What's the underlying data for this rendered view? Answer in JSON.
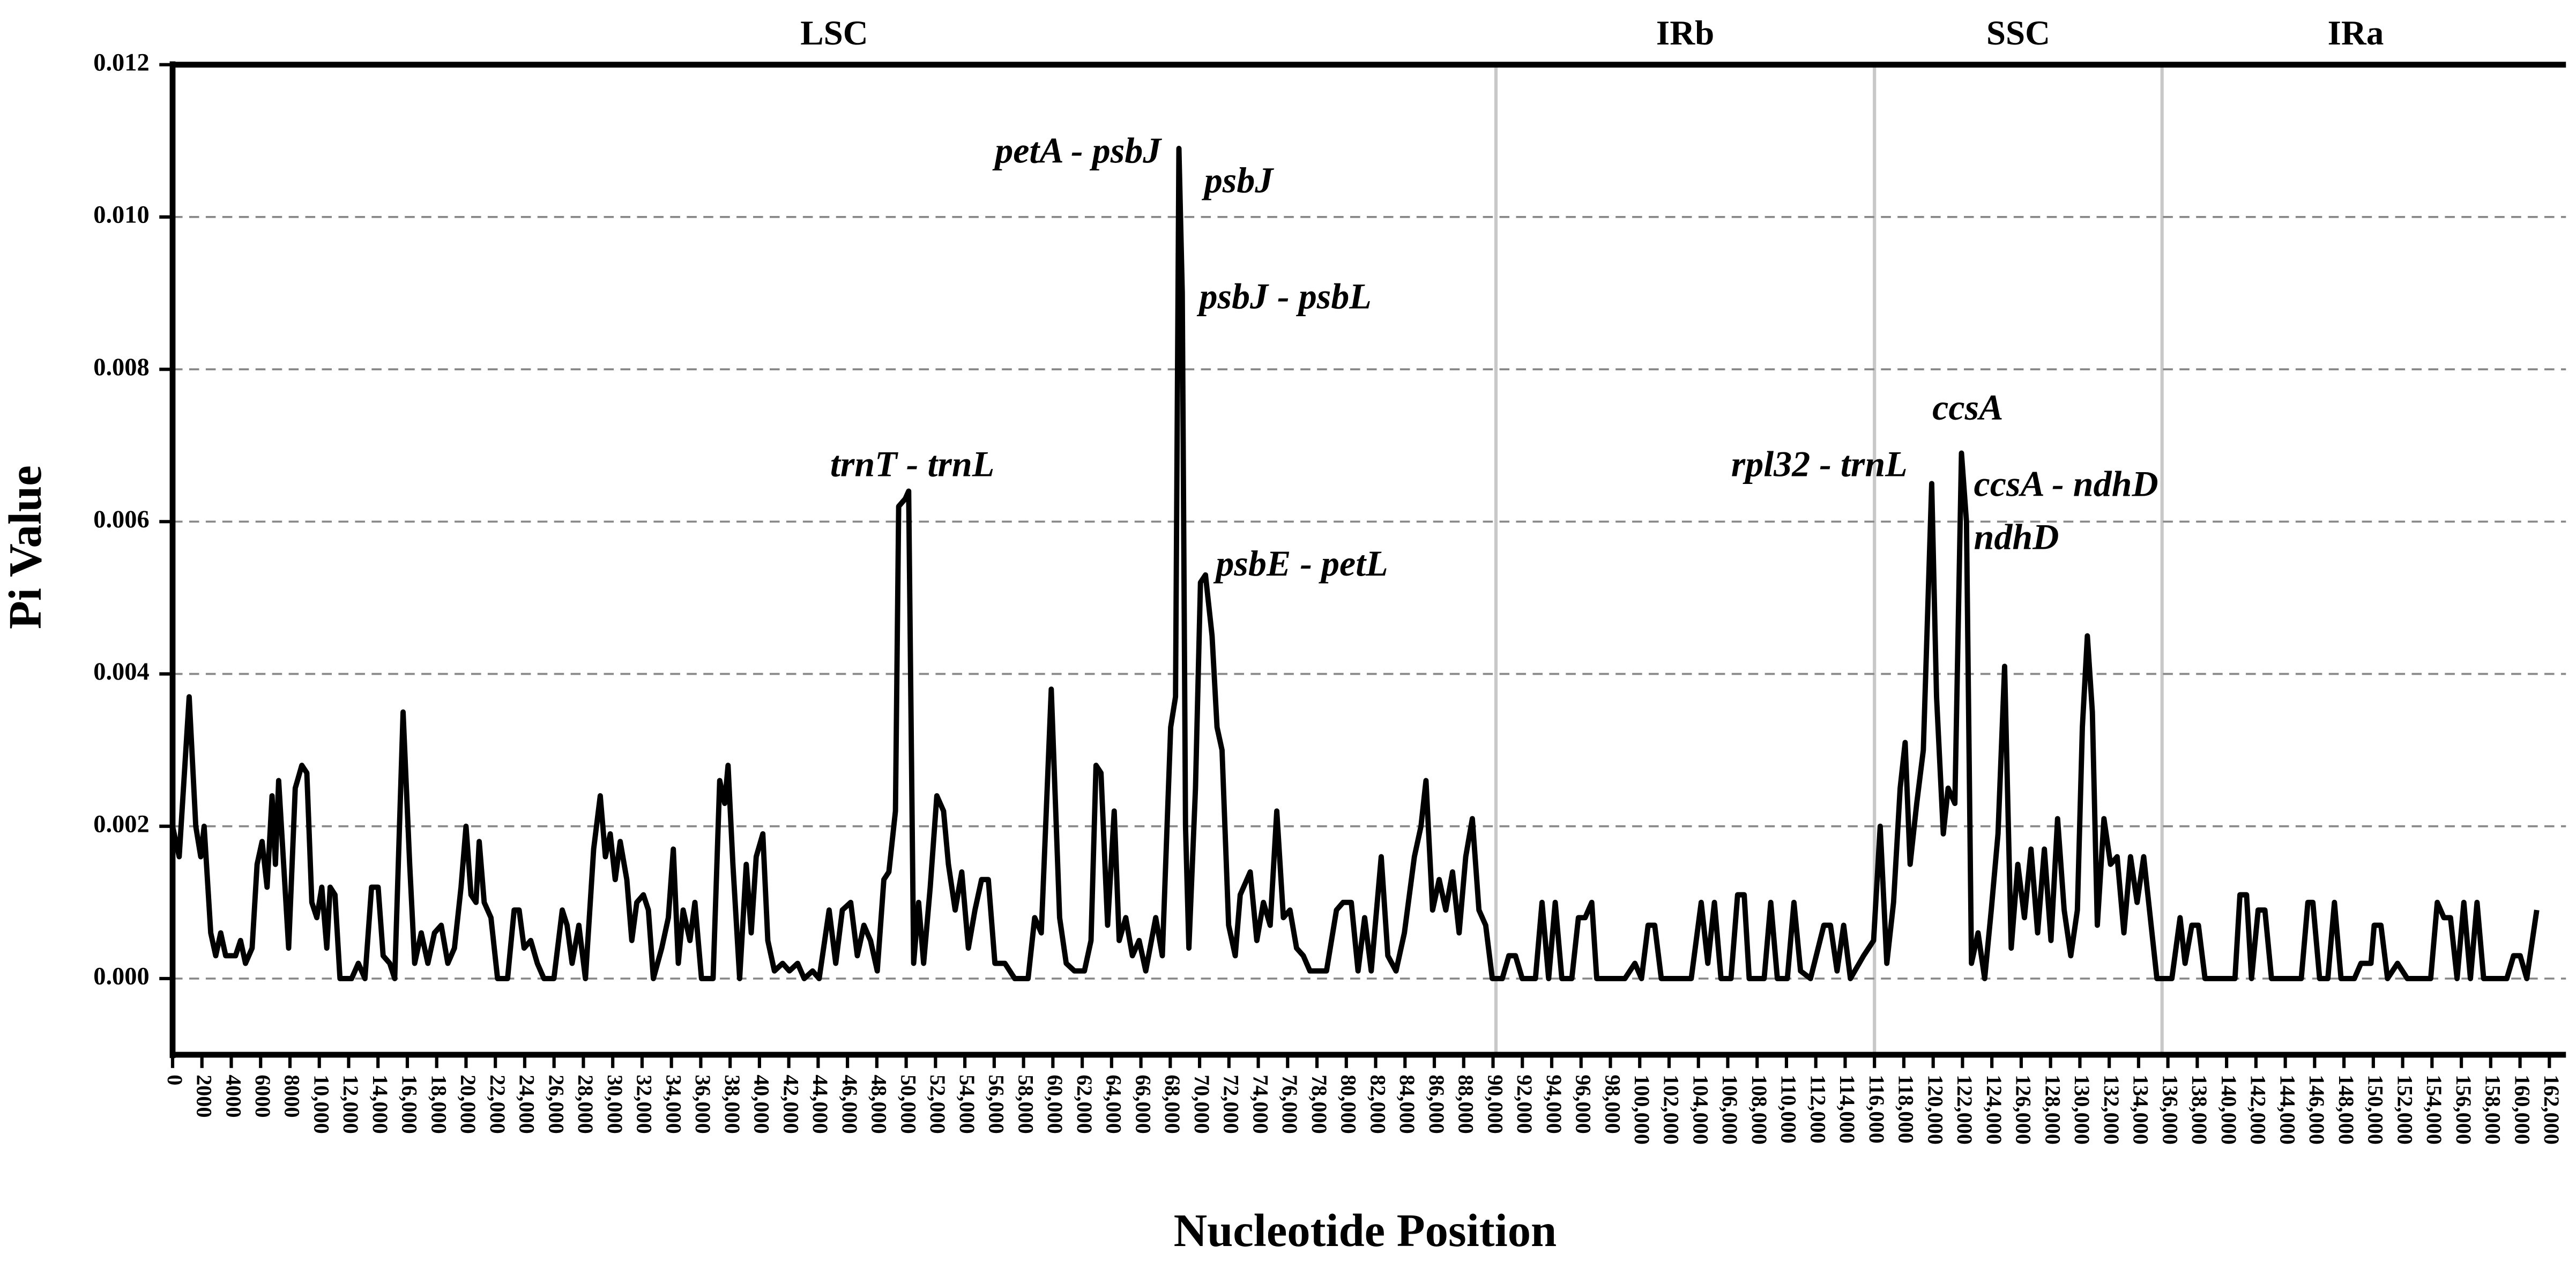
{
  "chart_data": {
    "type": "line",
    "x_label": "Nucleotide Position",
    "y_label": "Pi Value",
    "color": "#000000",
    "grid": true,
    "region_labels": [
      "LSC",
      "IRb",
      "SSC",
      "IRa"
    ],
    "region_boundaries": [
      90200,
      116000,
      135600
    ],
    "annotations": [
      "petA - psbJ",
      "psbJ",
      "psbJ - psbL",
      "trnT - trnL",
      "psbE - petL",
      "rpl32 - trnL",
      "ccsA",
      "ccsA - ndhD",
      "ndhD"
    ],
    "xlim": [
      0,
      162000
    ],
    "ylim": [
      -0.001,
      0.012
    ],
    "yticks": [
      {
        "value": 0,
        "label": "0.000"
      },
      {
        "value": 0.002,
        "label": "0.002"
      },
      {
        "value": 0.004,
        "label": "0.004"
      },
      {
        "value": 0.006,
        "label": "0.006"
      },
      {
        "value": 0.008,
        "label": "0.008"
      },
      {
        "value": 0.01,
        "label": "0.010"
      },
      {
        "value": 0.012,
        "label": "0.012"
      }
    ],
    "xticks": [
      0,
      2000,
      4000,
      6000,
      8000,
      {
        "value": 10000,
        "label": "10,000"
      },
      {
        "value": 12000,
        "label": "12,000"
      },
      {
        "value": 14000,
        "label": "14,000"
      },
      {
        "value": 16000,
        "label": "16,000"
      },
      {
        "value": 18000,
        "label": "18,000"
      },
      {
        "value": 20000,
        "label": "20,000"
      },
      {
        "value": 22000,
        "label": "22,000"
      },
      {
        "value": 24000,
        "label": "24,000"
      },
      {
        "value": 26000,
        "label": "26,000"
      },
      {
        "value": 28000,
        "label": "28,000"
      },
      {
        "value": 30000,
        "label": "30,000"
      },
      {
        "value": 32000,
        "label": "32,000"
      },
      {
        "value": 34000,
        "label": "34,000"
      },
      {
        "value": 36000,
        "label": "36,000"
      },
      {
        "value": 38000,
        "label": "38,000"
      },
      {
        "value": 40000,
        "label": "40,000"
      },
      {
        "value": 42000,
        "label": "42,000"
      },
      {
        "value": 44000,
        "label": "44,000"
      },
      {
        "value": 46000,
        "label": "46,000"
      },
      {
        "value": 48000,
        "label": "48,000"
      },
      {
        "value": 50000,
        "label": "50,000"
      },
      {
        "value": 52000,
        "label": "52,000"
      },
      {
        "value": 54000,
        "label": "54,000"
      },
      {
        "value": 56000,
        "label": "56,000"
      },
      {
        "value": 58000,
        "label": "58,000"
      },
      {
        "value": 60000,
        "label": "60,000"
      },
      {
        "value": 62000,
        "label": "62,000"
      },
      {
        "value": 64000,
        "label": "64,000"
      },
      {
        "value": 66000,
        "label": "66,000"
      },
      {
        "value": 68000,
        "label": "68,000"
      },
      {
        "value": 70000,
        "label": "70,000"
      },
      {
        "value": 72000,
        "label": "72,000"
      },
      {
        "value": 74000,
        "label": "74,000"
      },
      {
        "value": 76000,
        "label": "76,000"
      },
      {
        "value": 78000,
        "label": "78,000"
      },
      {
        "value": 80000,
        "label": "80,000"
      },
      {
        "value": 82000,
        "label": "82,000"
      },
      {
        "value": 84000,
        "label": "84,000"
      },
      {
        "value": 86000,
        "label": "86,000"
      },
      {
        "value": 88000,
        "label": "88,000"
      },
      {
        "value": 90000,
        "label": "90,000"
      },
      {
        "value": 92000,
        "label": "92,000"
      },
      {
        "value": 94000,
        "label": "94,000"
      },
      {
        "value": 96000,
        "label": "96,000"
      },
      {
        "value": 98000,
        "label": "98,000"
      },
      {
        "value": 100000,
        "label": "100,000"
      },
      {
        "value": 102000,
        "label": "102,000"
      },
      {
        "value": 104000,
        "label": "104,000"
      },
      {
        "value": 106000,
        "label": "106,000"
      },
      {
        "value": 108000,
        "label": "108,000"
      },
      {
        "value": 110000,
        "label": "110,000"
      },
      {
        "value": 112000,
        "label": "112,000"
      },
      {
        "value": 114000,
        "label": "114,000"
      },
      {
        "value": 116000,
        "label": "116,000"
      },
      {
        "value": 118000,
        "label": "118,000"
      },
      {
        "value": 120000,
        "label": "120,000"
      },
      {
        "value": 122000,
        "label": "122,000"
      },
      {
        "value": 124000,
        "label": "124,000"
      },
      {
        "value": 126000,
        "label": "126,000"
      },
      {
        "value": 128000,
        "label": "128,000"
      },
      {
        "value": 130000,
        "label": "130,000"
      },
      {
        "value": 132000,
        "label": "132,000"
      },
      {
        "value": 134000,
        "label": "134,000"
      },
      {
        "value": 136000,
        "label": "136,000"
      },
      {
        "value": 138000,
        "label": "138,000"
      },
      {
        "value": 140000,
        "label": "140,000"
      },
      {
        "value": 142000,
        "label": "142,000"
      },
      {
        "value": 144000,
        "label": "144,000"
      },
      {
        "value": 146000,
        "label": "146,000"
      },
      {
        "value": 148000,
        "label": "148,000"
      },
      {
        "value": 150000,
        "label": "150,000"
      },
      {
        "value": 152000,
        "label": "152,000"
      },
      {
        "value": 154000,
        "label": "154,000"
      },
      {
        "value": 156000,
        "label": "156,000"
      },
      {
        "value": 158000,
        "label": "158,000"
      },
      {
        "value": 160000,
        "label": "160,000"
      },
      {
        "value": 162000,
        "label": "162,000"
      }
    ],
    "x": [
      0,
      450,
      1130,
      1580,
      1920,
      2150,
      2600,
      2940,
      3280,
      3620,
      4290,
      4630,
      4970,
      5420,
      5760,
      6100,
      6440,
      6780,
      7010,
      7230,
      7570,
      7910,
      8360,
      8810,
      9150,
      9490,
      9830,
      10170,
      10510,
      10740,
      11070,
      11410,
      12200,
      12660,
      13110,
      13560,
      14010,
      14350,
      14800,
      15140,
      15710,
      16160,
      16500,
      16950,
      17400,
      17850,
      18310,
      18760,
      19210,
      19660,
      20000,
      20340,
      20680,
      20900,
      21240,
      21700,
      22150,
      22830,
      23280,
      23620,
      23960,
      24410,
      24860,
      25310,
      25990,
      26560,
      26890,
      27230,
      27690,
      28140,
      28700,
      29150,
      29500,
      29830,
      30170,
      30510,
      30960,
      31300,
      31640,
      32090,
      32430,
      32770,
      33340,
      33790,
      34130,
      34470,
      34800,
      35260,
      35600,
      36050,
      36840,
      37290,
      37630,
      37860,
      38190,
      38650,
      39100,
      39440,
      39780,
      40230,
      40570,
      41020,
      41580,
      42040,
      42600,
      43050,
      43620,
      44070,
      44750,
      45200,
      45650,
      46220,
      46670,
      47120,
      47570,
      48030,
      48480,
      48820,
      49270,
      49490,
      49940,
      50170,
      50510,
      50850,
      51190,
      51640,
      52090,
      52550,
      52880,
      53340,
      53790,
      54240,
      54690,
      55140,
      55600,
      56050,
      56730,
      57400,
      58310,
      58760,
      59210,
      59890,
      60460,
      60910,
      61470,
      62150,
      62600,
      62940,
      63280,
      63730,
      64180,
      64520,
      64970,
      65420,
      65880,
      66330,
      67010,
      67460,
      68030,
      68360,
      68590,
      68820,
      69040,
      69270,
      69720,
      70060,
      70400,
      70850,
      71190,
      71530,
      71980,
      72430,
      72770,
      73450,
      73900,
      74350,
      74810,
      75260,
      75710,
      76160,
      76610,
      77070,
      77520,
      78200,
      78650,
      79330,
      79780,
      80340,
      80800,
      81250,
      81700,
      82380,
      82830,
      83390,
      83960,
      84640,
      85090,
      85430,
      85880,
      86330,
      86780,
      87240,
      87690,
      88140,
      88590,
      89040,
      89500,
      89950,
      90630,
      91080,
      91530,
      91990,
      92890,
      93340,
      93790,
      94240,
      94690,
      95370,
      95820,
      96280,
      96730,
      97070,
      98990,
      99670,
      100120,
      100570,
      101020,
      101470,
      103510,
      104190,
      104640,
      105090,
      105540,
      106220,
      106670,
      107120,
      107460,
      108480,
      108930,
      109380,
      110060,
      110510,
      110960,
      111640,
      112550,
      113000,
      113450,
      113900,
      114360,
      115260,
      115940,
      116390,
      116840,
      117300,
      117750,
      118090,
      118430,
      118880,
      119330,
      119900,
      120230,
      120690,
      121020,
      121480,
      121930,
      122270,
      122610,
      123060,
      123510,
      123960,
      124420,
      124870,
      125320,
      125770,
      126220,
      126670,
      127120,
      127580,
      128030,
      128480,
      128930,
      129380,
      129830,
      130170,
      130510,
      130850,
      131190,
      131640,
      132090,
      132540,
      133000,
      133450,
      133900,
      134350,
      134800,
      135250,
      136270,
      136830,
      137170,
      137630,
      138080,
      138530,
      140570,
      140910,
      141360,
      141700,
      142150,
      142610,
      143060,
      145090,
      145540,
      145880,
      146340,
      146900,
      147350,
      147800,
      148710,
      149160,
      149840,
      150060,
      150520,
      150970,
      151650,
      152320,
      153910,
      154360,
      154810,
      155260,
      155710,
      156170,
      156620,
      157070,
      157520,
      159100,
      159560,
      160010,
      160460,
      161140
    ],
    "values": [
      0.002,
      0.0016,
      0.0037,
      0.002,
      0.0016,
      0.002,
      0.0006,
      0.0003,
      0.0006,
      0.0003,
      0.0003,
      0.0005,
      0.0002,
      0.0004,
      0.0015,
      0.0018,
      0.0012,
      0.0024,
      0.0015,
      0.0026,
      0.0015,
      0.0004,
      0.0025,
      0.0028,
      0.0027,
      0.001,
      0.0008,
      0.0012,
      0.0004,
      0.0012,
      0.0011,
      0,
      0,
      0.0002,
      0,
      0.0012,
      0.0012,
      0.0003,
      0.0002,
      0,
      0.0035,
      0.0015,
      0.0002,
      0.0006,
      0.0002,
      0.0006,
      0.0007,
      0.0002,
      0.0004,
      0.0012,
      0.002,
      0.0011,
      0.001,
      0.0018,
      0.001,
      0.0008,
      0,
      0,
      0.0009,
      0.0009,
      0.0004,
      0.0005,
      0.0002,
      0,
      0,
      0.0009,
      0.0007,
      0.0002,
      0.0007,
      0,
      0.0017,
      0.0024,
      0.0016,
      0.0019,
      0.0013,
      0.0018,
      0.0013,
      0.0005,
      0.001,
      0.0011,
      0.0009,
      0,
      0.0004,
      0.0008,
      0.0017,
      0.0002,
      0.0009,
      0.0005,
      0.001,
      0,
      0,
      0.0026,
      0.0023,
      0.0028,
      0.0015,
      0,
      0.0015,
      0.0006,
      0.0016,
      0.0019,
      0.0005,
      0.0001,
      0.0002,
      0.0001,
      0.0002,
      0,
      0.0001,
      0,
      0.0009,
      0.0002,
      0.0009,
      0.001,
      0.0003,
      0.0007,
      0.0005,
      0.0001,
      0.0013,
      0.0014,
      0.0022,
      0.0062,
      0.0063,
      0.0064,
      0.0002,
      0.001,
      0.0002,
      0.0012,
      0.0024,
      0.0022,
      0.0015,
      0.0009,
      0.0014,
      0.0004,
      0.0009,
      0.0013,
      0.0013,
      0.0002,
      0.0002,
      0,
      0,
      0.0008,
      0.0006,
      0.0038,
      0.0008,
      0.0002,
      0.0001,
      0.0001,
      0.0005,
      0.0028,
      0.0027,
      0.0007,
      0.0022,
      0.0005,
      0.0008,
      0.0003,
      0.0005,
      0.0001,
      0.0008,
      0.0003,
      0.0033,
      0.0037,
      0.0109,
      0.009,
      0.002,
      0.0004,
      0.0025,
      0.0052,
      0.0053,
      0.0045,
      0.0033,
      0.003,
      0.0007,
      0.0003,
      0.0011,
      0.0014,
      0.0005,
      0.001,
      0.0007,
      0.0022,
      0.0008,
      0.0009,
      0.0004,
      0.0003,
      0.0001,
      0.0001,
      0.0001,
      0.0009,
      0.001,
      0.001,
      0.0001,
      0.0008,
      0.0001,
      0.0016,
      0.0003,
      0.0001,
      0.0006,
      0.0016,
      0.002,
      0.0026,
      0.0009,
      0.0013,
      0.0009,
      0.0014,
      0.0006,
      0.0016,
      0.0021,
      0.0009,
      0.0007,
      0,
      0,
      0.0003,
      0.0003,
      0,
      0,
      0.001,
      0,
      0.001,
      0,
      0,
      0.0008,
      0.0008,
      0.001,
      0,
      0,
      0.0002,
      0,
      0.0007,
      0.0007,
      0,
      0,
      0.001,
      0.0002,
      0.001,
      0,
      0,
      0.0011,
      0.0011,
      0,
      0,
      0.001,
      0,
      0,
      0.001,
      0.0001,
      0,
      0.0007,
      0.0007,
      0.0001,
      0.0007,
      0,
      0.0003,
      0.0005,
      0.002,
      0.0002,
      0.001,
      0.0025,
      0.0031,
      0.0015,
      0.0023,
      0.003,
      0.0065,
      0.0037,
      0.0019,
      0.0025,
      0.0023,
      0.0069,
      0.006,
      0.0002,
      0.0006,
      0,
      0.0009,
      0.0019,
      0.0041,
      0.0004,
      0.0015,
      0.0008,
      0.0017,
      0.0006,
      0.0017,
      0.0005,
      0.0021,
      0.0009,
      0.0003,
      0.0009,
      0.0033,
      0.0045,
      0.0035,
      0.0007,
      0.0021,
      0.0015,
      0.0016,
      0.0006,
      0.0016,
      0.001,
      0.0016,
      0.0008,
      0,
      0,
      0.0008,
      0.0002,
      0.0007,
      0.0007,
      0,
      0,
      0.0011,
      0.0011,
      0,
      0.0009,
      0.0009,
      0,
      0,
      0.001,
      0.001,
      0,
      0,
      0.001,
      0,
      0,
      0.0002,
      0.0002,
      0.0007,
      0.0007,
      0,
      0.0002,
      0,
      0,
      0.001,
      0.0008,
      0.0008,
      0,
      0.001,
      0,
      0.001,
      0,
      0,
      0.0003,
      0.0003,
      0,
      0.0009
    ]
  }
}
